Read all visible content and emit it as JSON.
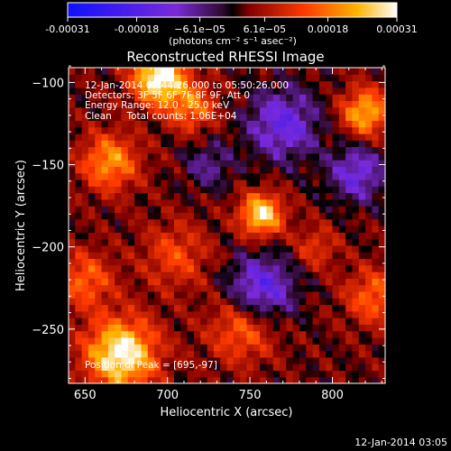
{
  "chart_data": {
    "type": "heatmap",
    "title": "Reconstructed RHESSI Image",
    "xlabel": "Heliocentric X (arcsec)",
    "ylabel": "Heliocentric Y (arcsec)",
    "xlim": [
      640,
      832
    ],
    "ylim": [
      -283,
      -91
    ],
    "xticks": [
      650,
      700,
      750,
      800
    ],
    "yticks": [
      -100,
      -150,
      -200,
      -250
    ],
    "colorbar": {
      "range": [
        -0.00031,
        0.00031
      ],
      "tick_values": [
        -0.00031,
        -0.00018,
        -6.1e-05,
        6.1e-05,
        0.00018,
        0.00031
      ],
      "tick_labels": [
        "-0.00031",
        "-0.00018",
        "−6.1e−05",
        "6.1e−05",
        "0.00018",
        "0.00031"
      ],
      "unit_label": "(photons cm⁻² s⁻¹ asec⁻²)"
    },
    "annotations": [
      "12-Jan-2014 05:44:26.000 to 05:50:26.000",
      "Detectors: 3F 5F 6F 7F 8F 9F, Att 0",
      "Energy Range: 12.0 - 25.0 keV",
      "Clean     Total counts: 1.06E+04"
    ],
    "peak_label": "Position of Peak = [695,-97]",
    "grid_spacing_arcsec": 4,
    "sources": [
      {
        "x": 695,
        "y": -97,
        "amp": 1.0,
        "sigma": 11
      },
      {
        "x": 672,
        "y": -265,
        "amp": 0.95,
        "sigma": 15
      },
      {
        "x": 757,
        "y": -180,
        "amp": 0.85,
        "sigma": 9
      },
      {
        "x": 665,
        "y": -148,
        "amp": 0.6,
        "sigma": 12
      },
      {
        "x": 715,
        "y": -115,
        "amp": 0.5,
        "sigma": 10
      },
      {
        "x": 820,
        "y": -118,
        "amp": 0.7,
        "sigma": 10
      },
      {
        "x": 825,
        "y": -230,
        "amp": 0.45,
        "sigma": 12
      },
      {
        "x": 745,
        "y": -250,
        "amp": 0.45,
        "sigma": 14
      },
      {
        "x": 705,
        "y": -205,
        "amp": 0.35,
        "sigma": 14
      },
      {
        "x": 790,
        "y": -200,
        "amp": 0.3,
        "sigma": 9
      },
      {
        "x": 650,
        "y": -220,
        "amp": 0.45,
        "sigma": 12
      }
    ],
    "depressions": [
      {
        "x": 770,
        "y": -125,
        "amp": -0.55,
        "sigma": 15
      },
      {
        "x": 757,
        "y": -225,
        "amp": -0.6,
        "sigma": 14
      },
      {
        "x": 815,
        "y": -155,
        "amp": -0.5,
        "sigma": 12
      },
      {
        "x": 725,
        "y": -150,
        "amp": -0.3,
        "sigma": 10
      }
    ]
  },
  "footer_date": "12-Jan-2014 03:05"
}
